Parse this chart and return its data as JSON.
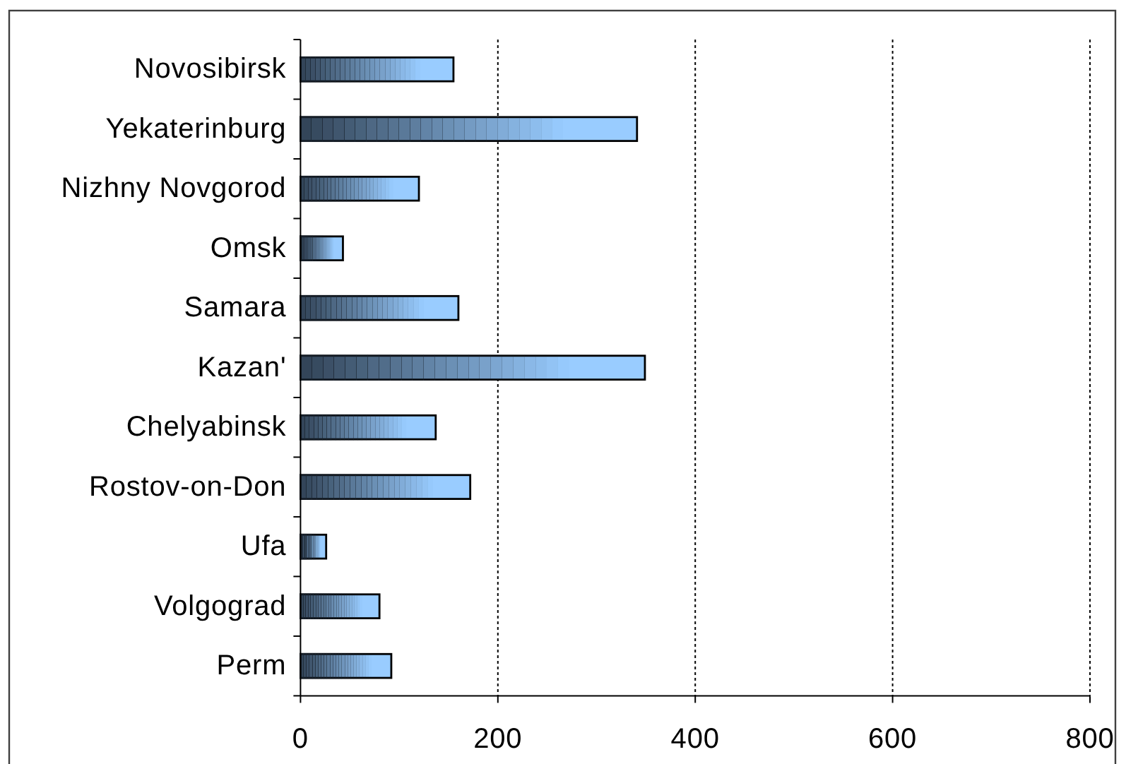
{
  "chart_data": {
    "type": "bar",
    "orientation": "horizontal",
    "categories": [
      "Novosibirsk",
      "Yekaterinburg",
      "Nizhny Novgorod",
      "Omsk",
      "Samara",
      "Kazan'",
      "Chelyabinsk",
      "Rostov-on-Don",
      "Ufa",
      "Volgograd",
      "Perm"
    ],
    "values": [
      155,
      341,
      120,
      43,
      160,
      349,
      137,
      172,
      26,
      80,
      92
    ],
    "color": "#99ccff",
    "xlim": [
      0,
      800
    ],
    "xticks": [
      0,
      200,
      400,
      600,
      800
    ],
    "grid": "x"
  }
}
